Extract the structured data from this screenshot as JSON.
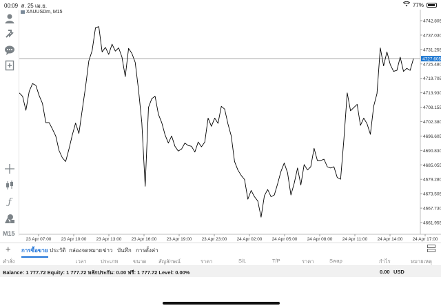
{
  "status": {
    "time": "00:09",
    "date": "ส. 25 เม.ย.",
    "battery": "77%",
    "battery_level": 0.77
  },
  "chart": {
    "symbol_label": "XAUUSDm, M15",
    "current_price": "4727.605",
    "timeframe": "M15"
  },
  "chart_data": {
    "type": "line",
    "ylim": [
      4658,
      4748
    ],
    "y_ticks": [
      "4742.805",
      "4737.030",
      "4731.255",
      "4725.480",
      "4719.705",
      "4713.930",
      "4708.155",
      "4702.380",
      "4696.605",
      "4690.830",
      "4685.055",
      "4679.280",
      "4673.505",
      "4667.730",
      "4661.955"
    ],
    "x_ticks": [
      "23 Apr 07:00",
      "23 Apr 10:00",
      "23 Apr 13:00",
      "23 Apr 16:00",
      "23 Apr 19:00",
      "23 Apr 23:00",
      "24 Apr 02:00",
      "24 Apr 05:00",
      "24 Apr 08:00",
      "24 Apr 11:00",
      "24 Apr 14:00",
      "24 Apr 17:00"
    ],
    "current_price": 4727.605,
    "grid": false,
    "values": [
      4713.9,
      4712.5,
      4706.9,
      4714.5,
      4717.6,
      4716.9,
      4712.8,
      4709.7,
      4702.0,
      4702.0,
      4699.4,
      4696.6,
      4690.8,
      4687.9,
      4686.4,
      4691.4,
      4697.0,
      4701.8,
      4697.6,
      4707.0,
      4716.2,
      4726.7,
      4730.8,
      4740.0,
      4740.4,
      4730.3,
      4732.1,
      4729.3,
      4733.4,
      4730.6,
      4731.9,
      4728.2,
      4720.4,
      4731.7,
      4729.7,
      4726.1,
      4715.2,
      4702.0,
      4676.5,
      4708.1,
      4711.6,
      4712.5,
      4705.3,
      4702.0,
      4697.1,
      4693.8,
      4696.6,
      4692.5,
      4690.6,
      4691.4,
      4693.8,
      4692.8,
      4692.5,
      4690.2,
      4694.2,
      4692.3,
      4694.2,
      4703.8,
      4700.5,
      4703.8,
      4701.7,
      4708.5,
      4707.4,
      4701.5,
      4696.6,
      4686.4,
      4683.0,
      4680.8,
      4679.2,
      4671.3,
      4674.8,
      4672.3,
      4670.6,
      4664.1,
      4672.7,
      4675.2,
      4672.3,
      4673.0,
      4677.5,
      4682.4,
      4685.8,
      4681.9,
      4673.0,
      4677.7,
      4683.8,
      4677.0,
      4685.2,
      4683.0,
      4684.3,
      4691.7,
      4686.8,
      4686.8,
      4687.3,
      4684.3,
      4683.8,
      4684.3,
      4680.0,
      4679.3,
      4695.4,
      4713.9,
      4706.7,
      4708.0,
      4709.3,
      4700.9,
      4703.8,
      4701.5,
      4697.3,
      4708.5,
      4713.6,
      4731.9,
      4724.7,
      4730.3,
      4725.2,
      4722.5,
      4722.9,
      4728.2,
      4722.5,
      4723.7,
      4722.9,
      4727.6
    ]
  },
  "tabs": [
    "การซื้อขาย",
    "ประวัติ",
    "กล่องจดหมาย",
    "ข่าว",
    "บันทึก",
    "การตั้งค่า"
  ],
  "columns": [
    "คำสั่ง",
    "เวลา",
    "ประเภท",
    "ขนาด",
    "สัญลักษณ์",
    "ราคา",
    "S/L",
    "T/P",
    "ราคา",
    "Swap",
    "กำไร",
    "หมายเหตุ"
  ],
  "balance": {
    "text": "Balance: 1 777.72 Equity: 1 777.72 หลักประกัน: 0.00 ฟรี: 1 777.72 Level: 0.00%",
    "profit": "0.00",
    "currency": "USD"
  },
  "colors": {
    "accent": "#1e73d9",
    "price_tag": "#1f78d1",
    "line": "#000000",
    "icon": "#7c8388"
  }
}
